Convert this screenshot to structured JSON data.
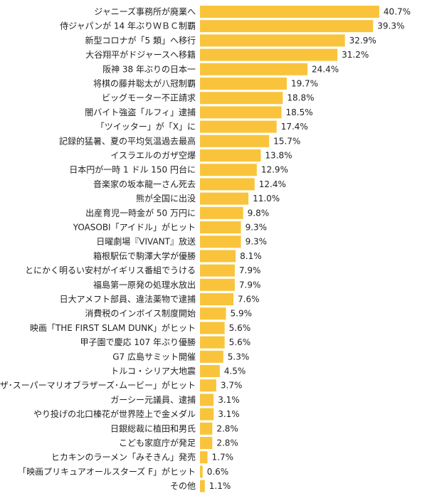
{
  "chart_data": {
    "type": "bar",
    "orientation": "horizontal",
    "xlim": [
      0,
      45
    ],
    "grid": false,
    "unit": "%",
    "bar_color": "#F9C43B",
    "categories": [
      "ジャニーズ事務所が廃業へ",
      "侍ジャパンが 14 年ぶりＷＢＣ制覇",
      "新型コロナが「5 類」へ移行",
      "大谷翔平がドジャースへ移籍",
      "阪神 38 年ぶりの日本一",
      "将棋の藤井聡太が八冠制覇",
      "ビッグモーター不正請求",
      "闇バイト強盗「ルフィ」逮捕",
      "「ツイッター」が「X」に",
      "記録的猛暑、夏の平均気温過去最高",
      "イスラエルのガザ空爆",
      "日本円が一時 1 ドル 150 円台に",
      "音楽家の坂本龍一さん死去",
      "熊が全国に出没",
      "出産育児一時金が 50 万円に",
      "YOASOBI「アイドル」がヒット",
      "日曜劇場『VIVANT』放送",
      "箱根駅伝で駒澤大学が優勝",
      "とにかく明るい安村がイギリス番組でうける",
      "福島第一原発の処理水放出",
      "日大アメフト部員、違法薬物で逮捕",
      "消費税のインボイス制度開始",
      "映画「THE FIRST SLAM DUNK」がヒット",
      "甲子園で慶応 107 年ぶり優勝",
      "G7 広島サミット開催",
      "トルコ・シリア大地震",
      "映画「ザ･スーパーマリオブラザーズ･ムービー」がヒット",
      "ガーシー元議員、逮捕",
      "やり投げの北口榛花が世界陸上で金メダル",
      "日銀総裁に植田和男氏",
      "こども家庭庁が発足",
      "ヒカキンのラーメン「みそきん」発売",
      "「映画プリキュアオールスターズ F」がヒット",
      "その他"
    ],
    "values": [
      40.7,
      39.3,
      32.9,
      31.2,
      24.4,
      19.7,
      18.8,
      18.5,
      17.4,
      15.7,
      13.8,
      12.9,
      12.4,
      11.0,
      9.8,
      9.3,
      9.3,
      8.1,
      7.9,
      7.9,
      7.6,
      5.9,
      5.6,
      5.6,
      5.3,
      4.5,
      3.7,
      3.1,
      3.1,
      2.8,
      2.8,
      1.7,
      0.6,
      1.1
    ],
    "value_labels": [
      "40.7%",
      "39.3%",
      "32.9%",
      "31.2%",
      "24.4%",
      "19.7%",
      "18.8%",
      "18.5%",
      "17.4%",
      "15.7%",
      "13.8%",
      "12.9%",
      "12.4%",
      "11.0%",
      "9.8%",
      "9.3%",
      "9.3%",
      "8.1%",
      "7.9%",
      "7.9%",
      "7.6%",
      "5.9%",
      "5.6%",
      "5.6%",
      "5.3%",
      "4.5%",
      "3.7%",
      "3.1%",
      "3.1%",
      "2.8%",
      "2.8%",
      "1.7%",
      "0.6%",
      "1.1%"
    ]
  }
}
